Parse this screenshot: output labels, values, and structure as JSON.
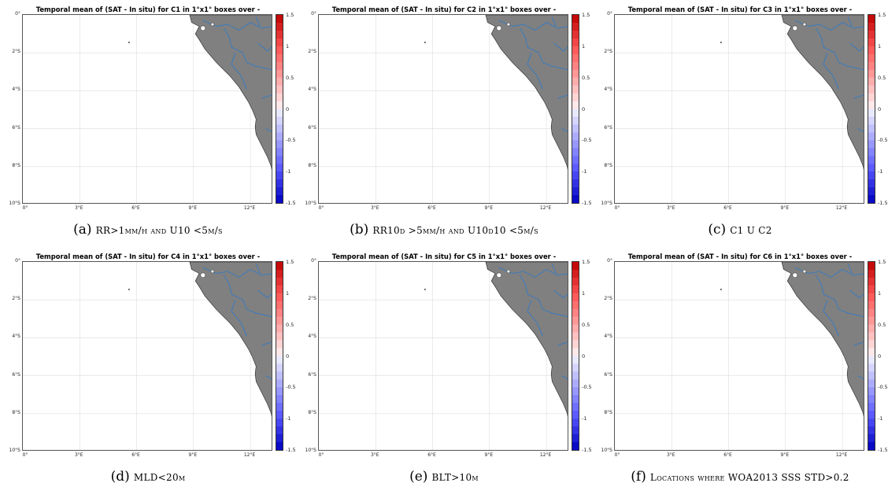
{
  "panels": [
    {
      "title": "Temporal mean of (SAT - In situ) for C1 in 1°x1° boxes over -",
      "letter": "(a)",
      "caption": "RR>1mm/h and U10 <5m/s"
    },
    {
      "title": "Temporal mean of (SAT - In situ) for C2 in 1°x1° boxes over -",
      "letter": "(b)",
      "caption": "RR10d >5mm/h and U10d10 <5m/s"
    },
    {
      "title": "Temporal mean of (SAT - In situ) for C3 in 1°x1° boxes over -",
      "letter": "(c)",
      "caption": "C1 U C2"
    },
    {
      "title": "Temporal mean of (SAT - In situ) for C4 in 1°x1° boxes over -",
      "letter": "(d)",
      "caption": "MLD<20m"
    },
    {
      "title": "Temporal mean of (SAT - In situ) for C5 in 1°x1° boxes over -",
      "letter": "(e)",
      "caption": "BLT>10m"
    },
    {
      "title": "Temporal mean of (SAT - In situ) for C6 in 1°x1° boxes over -",
      "letter": "(f)",
      "caption": "Locations where WOA2013 SSS STD>0.2"
    }
  ],
  "map": {
    "lon_range": [
      0,
      13.2
    ],
    "lat_range": [
      0,
      -10
    ],
    "lat_ticks": [
      "0°",
      "2°S",
      "4°S",
      "6°S",
      "8°S",
      "10°S"
    ],
    "lon_ticks": [
      "0°",
      "3°E",
      "6°E",
      "9°E",
      "12°E"
    ],
    "land_color": "#808080",
    "river_color": "#3a7bbf",
    "grid": true
  },
  "colorbar": {
    "ticks": [
      "1.5",
      "1",
      "0.5",
      "0",
      "-0.5",
      "-1",
      "-1.5"
    ],
    "range": [
      -1.5,
      1.5
    ],
    "colormap": "blue-white-red",
    "steps": 24
  }
}
